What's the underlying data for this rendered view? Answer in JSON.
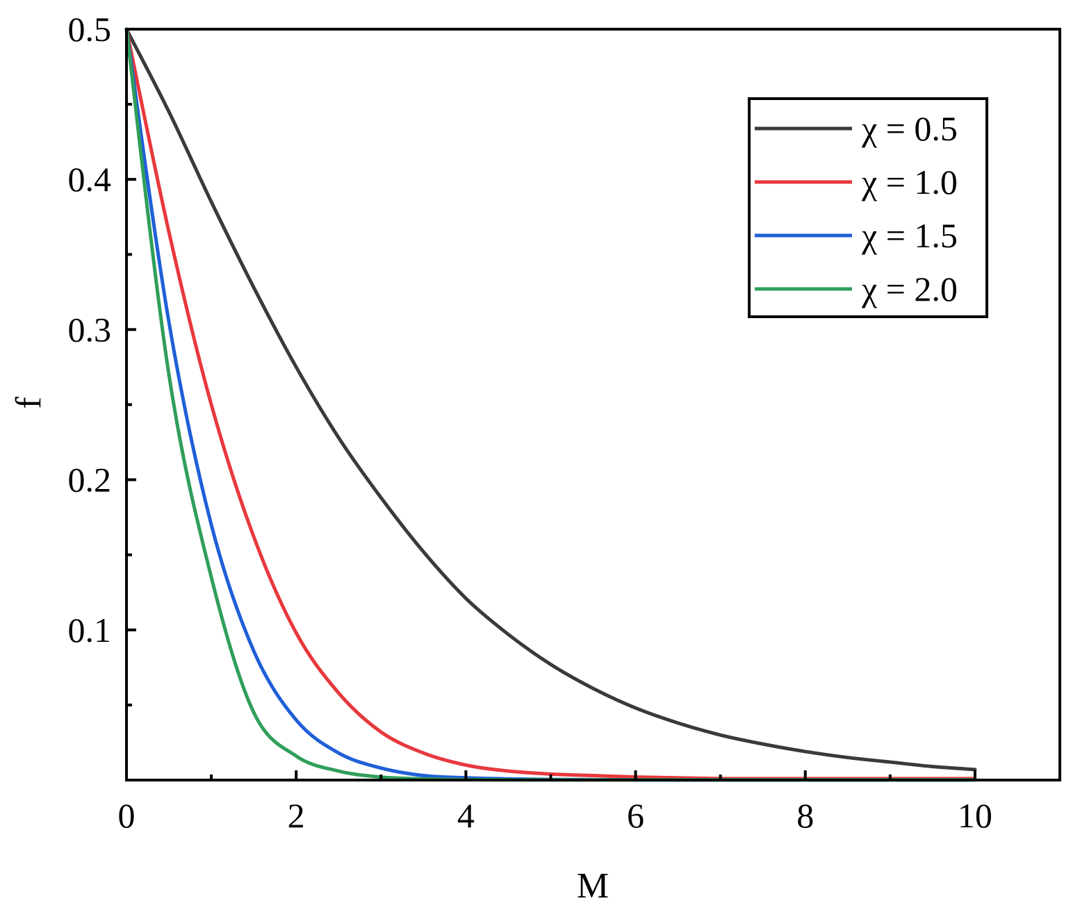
{
  "chart_data": {
    "type": "line",
    "title": "",
    "xlabel": "M",
    "ylabel": "f",
    "xlim": [
      0,
      11
    ],
    "ylim": [
      0,
      0.5
    ],
    "x_ticks": [
      0,
      2,
      4,
      6,
      8,
      10
    ],
    "x_tick_labels": [
      "0",
      "2",
      "4",
      "6",
      "8",
      "10"
    ],
    "x_minor_ticks": [
      1,
      3,
      5,
      7,
      9
    ],
    "y_ticks": [
      0.1,
      0.2,
      0.3,
      0.4,
      0.5
    ],
    "y_tick_labels": [
      "0.1",
      "0.2",
      "0.3",
      "0.4",
      "0.5"
    ],
    "y_minor_ticks": [
      0.05,
      0.15,
      0.25,
      0.35,
      0.45
    ],
    "grid": false,
    "legend_position": "top-right",
    "x": [
      0,
      0.5,
      1,
      1.5,
      2,
      2.5,
      3,
      3.5,
      4,
      4.5,
      5,
      5.5,
      6,
      6.5,
      7,
      7.5,
      8,
      8.5,
      9,
      9.5,
      10
    ],
    "series": [
      {
        "name": "χ = 0.5",
        "color": "#3a3a3a",
        "values": [
          0.5,
          0.445,
          0.385,
          0.328,
          0.275,
          0.228,
          0.188,
          0.152,
          0.121,
          0.097,
          0.077,
          0.061,
          0.048,
          0.038,
          0.03,
          0.024,
          0.019,
          0.015,
          0.012,
          0.009,
          0.007
        ]
      },
      {
        "name": "χ = 1.0",
        "color": "#e8383d",
        "values": [
          0.5,
          0.365,
          0.25,
          0.162,
          0.098,
          0.058,
          0.032,
          0.018,
          0.01,
          0.006,
          0.004,
          0.003,
          0.002,
          0.0015,
          0.001,
          0.001,
          0.001,
          0.001,
          0.001,
          0.001,
          0.001
        ]
      },
      {
        "name": "χ = 1.5",
        "color": "#1f5fd8",
        "values": [
          0.5,
          0.305,
          0.17,
          0.086,
          0.04,
          0.018,
          0.008,
          0.003,
          0.0015,
          0.0008,
          0.0004,
          0.0003,
          0.0002,
          0.0001,
          0.0001,
          0.0001,
          0.0001,
          0.0001,
          0.0001,
          0.0001,
          0.0001
        ]
      },
      {
        "name": "χ = 2.0",
        "color": "#2f9e5a",
        "values": [
          0.5,
          0.27,
          0.135,
          0.045,
          0.016,
          0.006,
          0.002,
          0.0008,
          0.0003,
          0.0001,
          0.0001,
          0.0001,
          0.0001,
          0.0001,
          0.0001,
          0.0001,
          0.0001,
          0.0001,
          0.0001,
          0.0001,
          0.0001
        ]
      }
    ]
  }
}
